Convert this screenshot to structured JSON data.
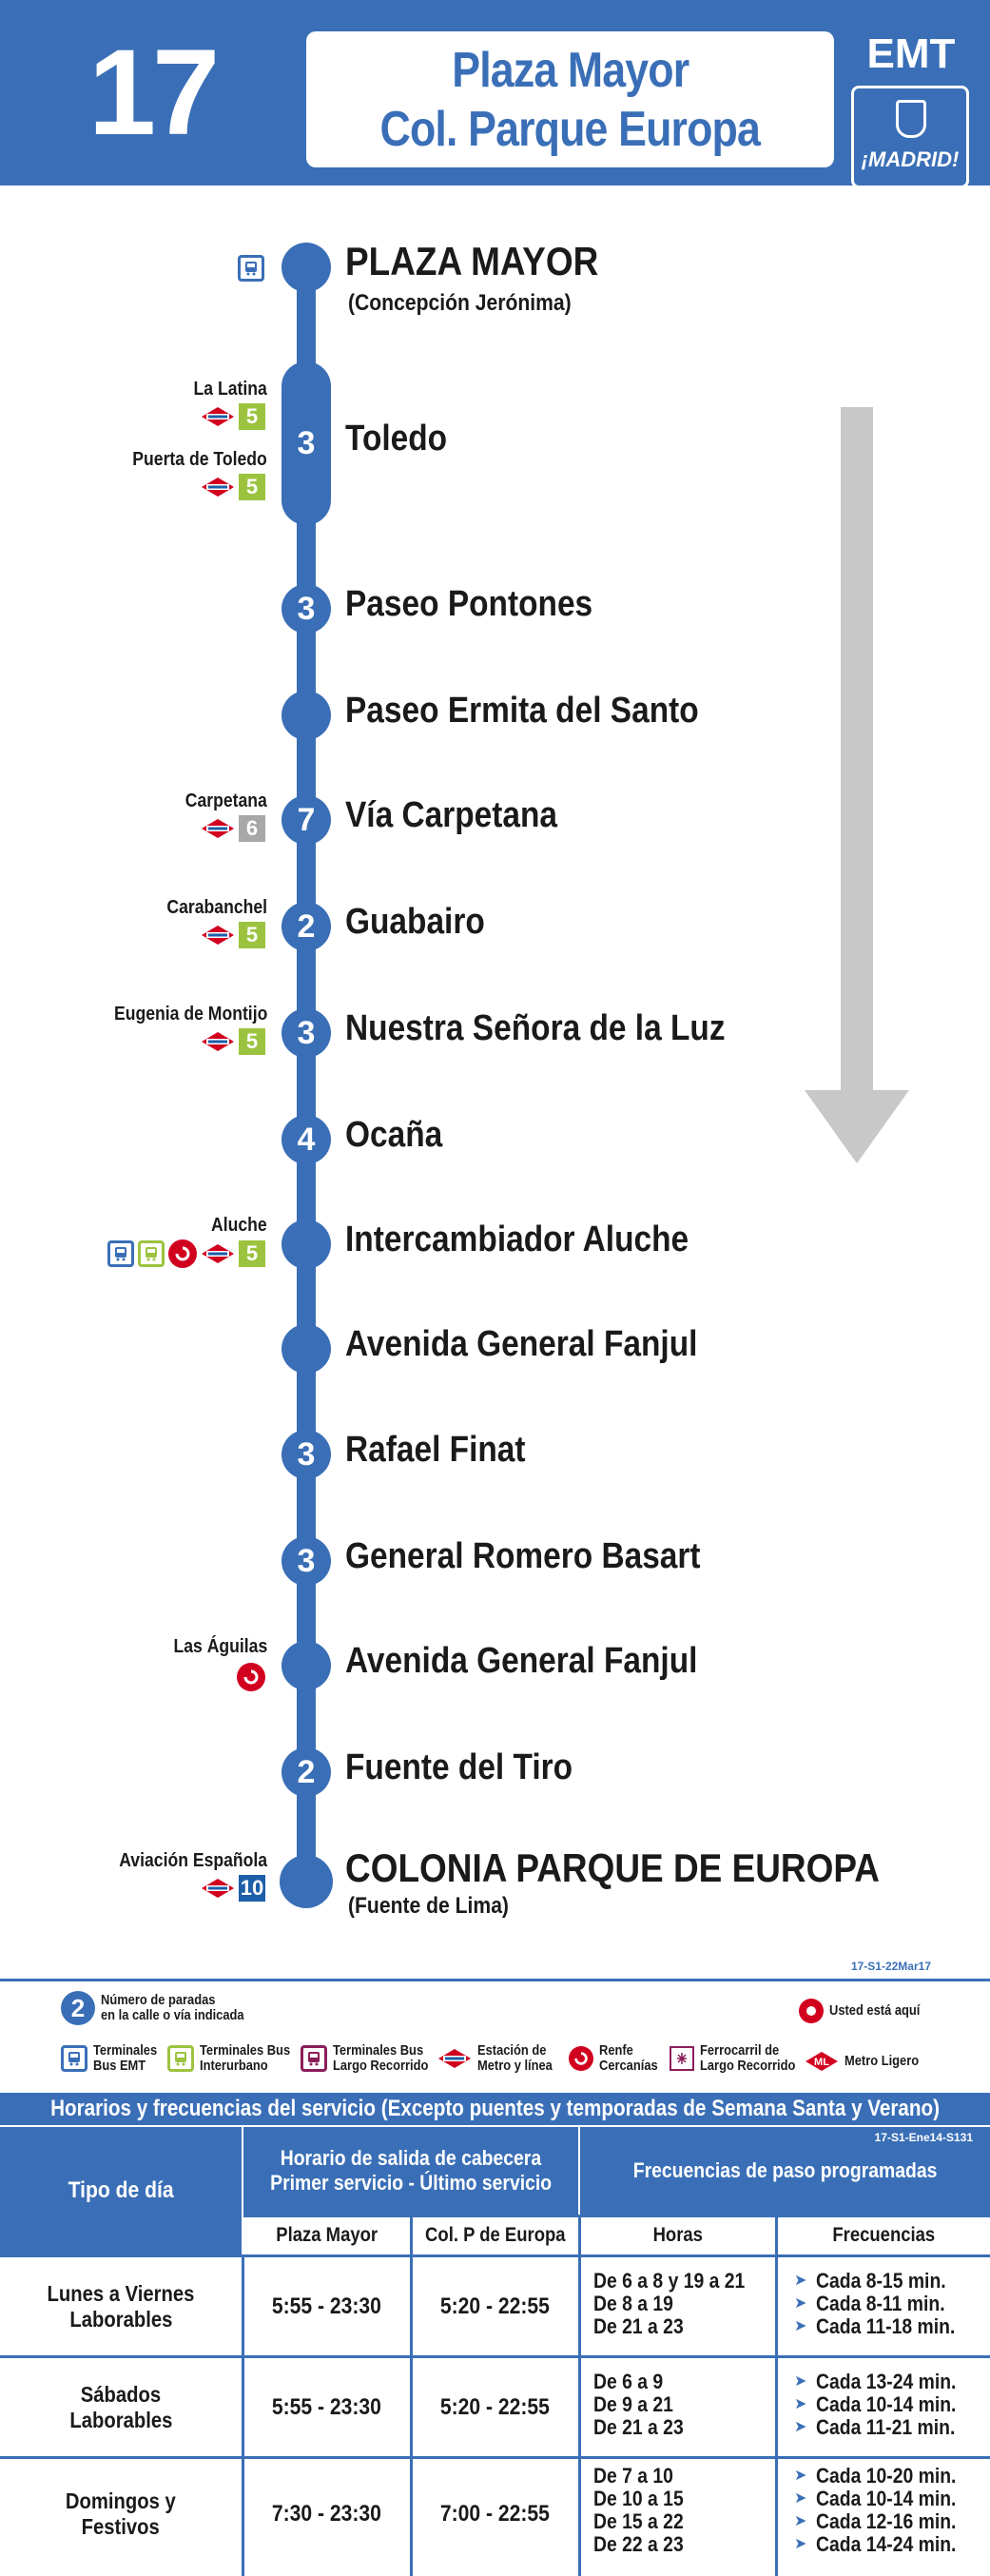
{
  "header": {
    "line_number": "17",
    "destination_1": "Plaza Mayor",
    "destination_2": "Col. Parque Europa",
    "operator": "EMT",
    "city_badge": "¡MADRID!"
  },
  "colors": {
    "brand_blue": "#3a6fb7",
    "metro_red": "#d2001f",
    "line5_green": "#9cc33f",
    "line6_grey": "#a8a8a8",
    "line10_blue": "#1c5ea8"
  },
  "stops": [
    {
      "name": "PLAZA MAYOR",
      "sub": "(Concepción Jerónima)",
      "count": "",
      "connections": [],
      "icons": [
        "bus-terminal-emt-icon"
      ]
    },
    {
      "name": "Toledo",
      "count": "3",
      "connections": [
        {
          "station": "La Latina",
          "line": "5"
        },
        {
          "station": "Puerta de Toledo",
          "line": "5"
        }
      ]
    },
    {
      "name": "Paseo Pontones",
      "count": "3"
    },
    {
      "name": "Paseo Ermita del Santo",
      "count": ""
    },
    {
      "name": "Vía Carpetana",
      "count": "7",
      "connections": [
        {
          "station": "Carpetana",
          "line": "6"
        }
      ]
    },
    {
      "name": "Guabairo",
      "count": "2",
      "connections": [
        {
          "station": "Carabanchel",
          "line": "5"
        }
      ]
    },
    {
      "name": "Nuestra Señora de la Luz",
      "count": "3",
      "connections": [
        {
          "station": "Eugenia de Montijo",
          "line": "5"
        }
      ]
    },
    {
      "name": "Ocaña",
      "count": "4"
    },
    {
      "name": "Intercambiador Aluche",
      "count": "",
      "connections": [
        {
          "station": "Aluche",
          "line": "5"
        }
      ]
    },
    {
      "name": "Avenida General Fanjul",
      "count": ""
    },
    {
      "name": "Rafael Finat",
      "count": "3"
    },
    {
      "name": "General Romero Basart",
      "count": "3"
    },
    {
      "name": "Avenida General Fanjul",
      "count": "",
      "connections": [
        {
          "station": "Las Águilas"
        }
      ]
    },
    {
      "name": "Fuente del Tiro",
      "count": "2"
    },
    {
      "name": "COLONIA PARQUE DE EUROPA",
      "sub": "(Fuente de Lima)",
      "count": "",
      "connections": [
        {
          "station": "Aviación Española",
          "line": "10"
        }
      ]
    }
  ],
  "legend": {
    "doc_code": "17-S1-22Mar17",
    "stops_count_number": "2",
    "stops_count_text_1": "Número de paradas",
    "stops_count_text_2": "en la calle o vía indicada",
    "you_are_here": "Usted está aquí",
    "items": [
      {
        "l1": "Terminales",
        "l2": "Bus EMT"
      },
      {
        "l1": "Terminales Bus",
        "l2": "Interurbano"
      },
      {
        "l1": "Terminales Bus",
        "l2": "Largo Recorrido"
      },
      {
        "l1": "Estación de",
        "l2": "Metro y línea"
      },
      {
        "l1": "Renfe",
        "l2": "Cercanías"
      },
      {
        "l1": "Ferrocarril de",
        "l2": "Largo Recorrido"
      },
      {
        "l1": "Metro Ligero",
        "l2": ""
      }
    ]
  },
  "schedule": {
    "title": "Horarios y frecuencias del servicio (Excepto puentes y temporadas de Semana Santa y Verano)",
    "doc_code": "17-S1-Ene14-S131",
    "col_tipo": "Tipo de día",
    "col_horario_1": "Horario de salida de cabecera",
    "col_horario_2": "Primer servicio - Último servicio",
    "col_frecuencias": "Frecuencias de paso programadas",
    "sub_plaza": "Plaza Mayor",
    "sub_colonia": "Col. P de Europa",
    "sub_horas": "Horas",
    "sub_frecuencias": "Frecuencias",
    "rows": [
      {
        "day_1": "Lunes a Viernes",
        "day_2": "Laborables",
        "plaza": "5:55 - 23:30",
        "colonia": "5:20 - 22:55",
        "hours": [
          "De 6 a 8 y 19 a 21",
          "De 8 a 19",
          "De 21 a 23"
        ],
        "freqs": [
          "Cada 8-15 min.",
          "Cada 8-11 min.",
          "Cada 11-18 min."
        ]
      },
      {
        "day_1": "Sábados",
        "day_2": "Laborables",
        "plaza": "5:55 - 23:30",
        "colonia": "5:20 - 22:55",
        "hours": [
          "De 6 a 9",
          "De 9 a 21",
          "De 21 a 23"
        ],
        "freqs": [
          "Cada 13-24 min.",
          "Cada 10-14 min.",
          "Cada 11-21 min."
        ]
      },
      {
        "day_1": "Domingos y",
        "day_2": "Festivos",
        "plaza": "7:30 - 23:30",
        "colonia": "7:00 - 22:55",
        "hours": [
          "De 7 a 10",
          "De 10 a 15",
          "De 15 a 22",
          "De 22 a 23"
        ],
        "freqs": [
          "Cada 10-20 min.",
          "Cada 10-14 min.",
          "Cada 12-16 min.",
          "Cada 14-24 min."
        ]
      }
    ]
  }
}
